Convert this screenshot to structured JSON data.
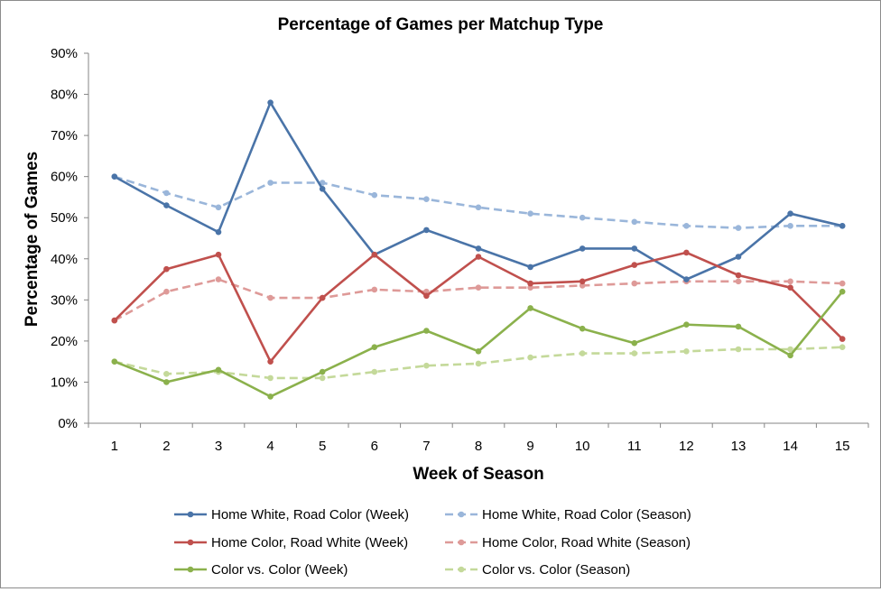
{
  "chart_data": {
    "type": "line",
    "title": "Percentage of Games per Matchup Type",
    "xlabel": "Week of Season",
    "ylabel": "Percentage of Games",
    "x": [
      1,
      2,
      3,
      4,
      5,
      6,
      7,
      8,
      9,
      10,
      11,
      12,
      13,
      14,
      15
    ],
    "ylim": [
      0,
      90
    ],
    "yticks": [
      0,
      10,
      20,
      30,
      40,
      50,
      60,
      70,
      80,
      90
    ],
    "ytick_labels": [
      "0%",
      "10%",
      "20%",
      "30%",
      "40%",
      "50%",
      "60%",
      "70%",
      "80%",
      "90%"
    ],
    "grid": false,
    "legend_position": "bottom",
    "series": [
      {
        "name": "Home White, Road Color (Week)",
        "color": "#4a74a8",
        "dash": false,
        "values": [
          60,
          53,
          46.5,
          78,
          57,
          41,
          47,
          42.5,
          38,
          42.5,
          42.5,
          35,
          40.5,
          51,
          48
        ]
      },
      {
        "name": "Home White, Road Color (Season)",
        "color": "#9ab6da",
        "dash": true,
        "values": [
          60,
          56,
          52.5,
          58.5,
          58.5,
          55.5,
          54.5,
          52.5,
          51,
          50,
          49,
          48,
          47.5,
          48,
          48
        ]
      },
      {
        "name": "Home Color, Road White (Week)",
        "color": "#c0504d",
        "dash": false,
        "values": [
          25,
          37.5,
          41,
          15,
          30.5,
          41,
          31,
          40.5,
          34,
          34.5,
          38.5,
          41.5,
          36,
          33,
          20.5
        ]
      },
      {
        "name": "Home Color, Road White (Season)",
        "color": "#de9a98",
        "dash": true,
        "values": [
          25,
          32,
          35,
          30.5,
          30.5,
          32.5,
          32,
          33,
          33,
          33.5,
          34,
          34.5,
          34.5,
          34.5,
          34
        ]
      },
      {
        "name": "Color vs. Color (Week)",
        "color": "#8bb14c",
        "dash": false,
        "values": [
          15,
          10,
          13,
          6.5,
          12.5,
          18.5,
          22.5,
          17.5,
          28,
          23,
          19.5,
          24,
          23.5,
          16.5,
          32
        ]
      },
      {
        "name": "Color vs. Color (Season)",
        "color": "#c4d99a",
        "dash": true,
        "values": [
          15,
          12,
          12.5,
          11,
          11,
          12.5,
          14,
          14.5,
          16,
          17,
          17,
          17.5,
          18,
          18,
          18.5
        ]
      }
    ]
  }
}
